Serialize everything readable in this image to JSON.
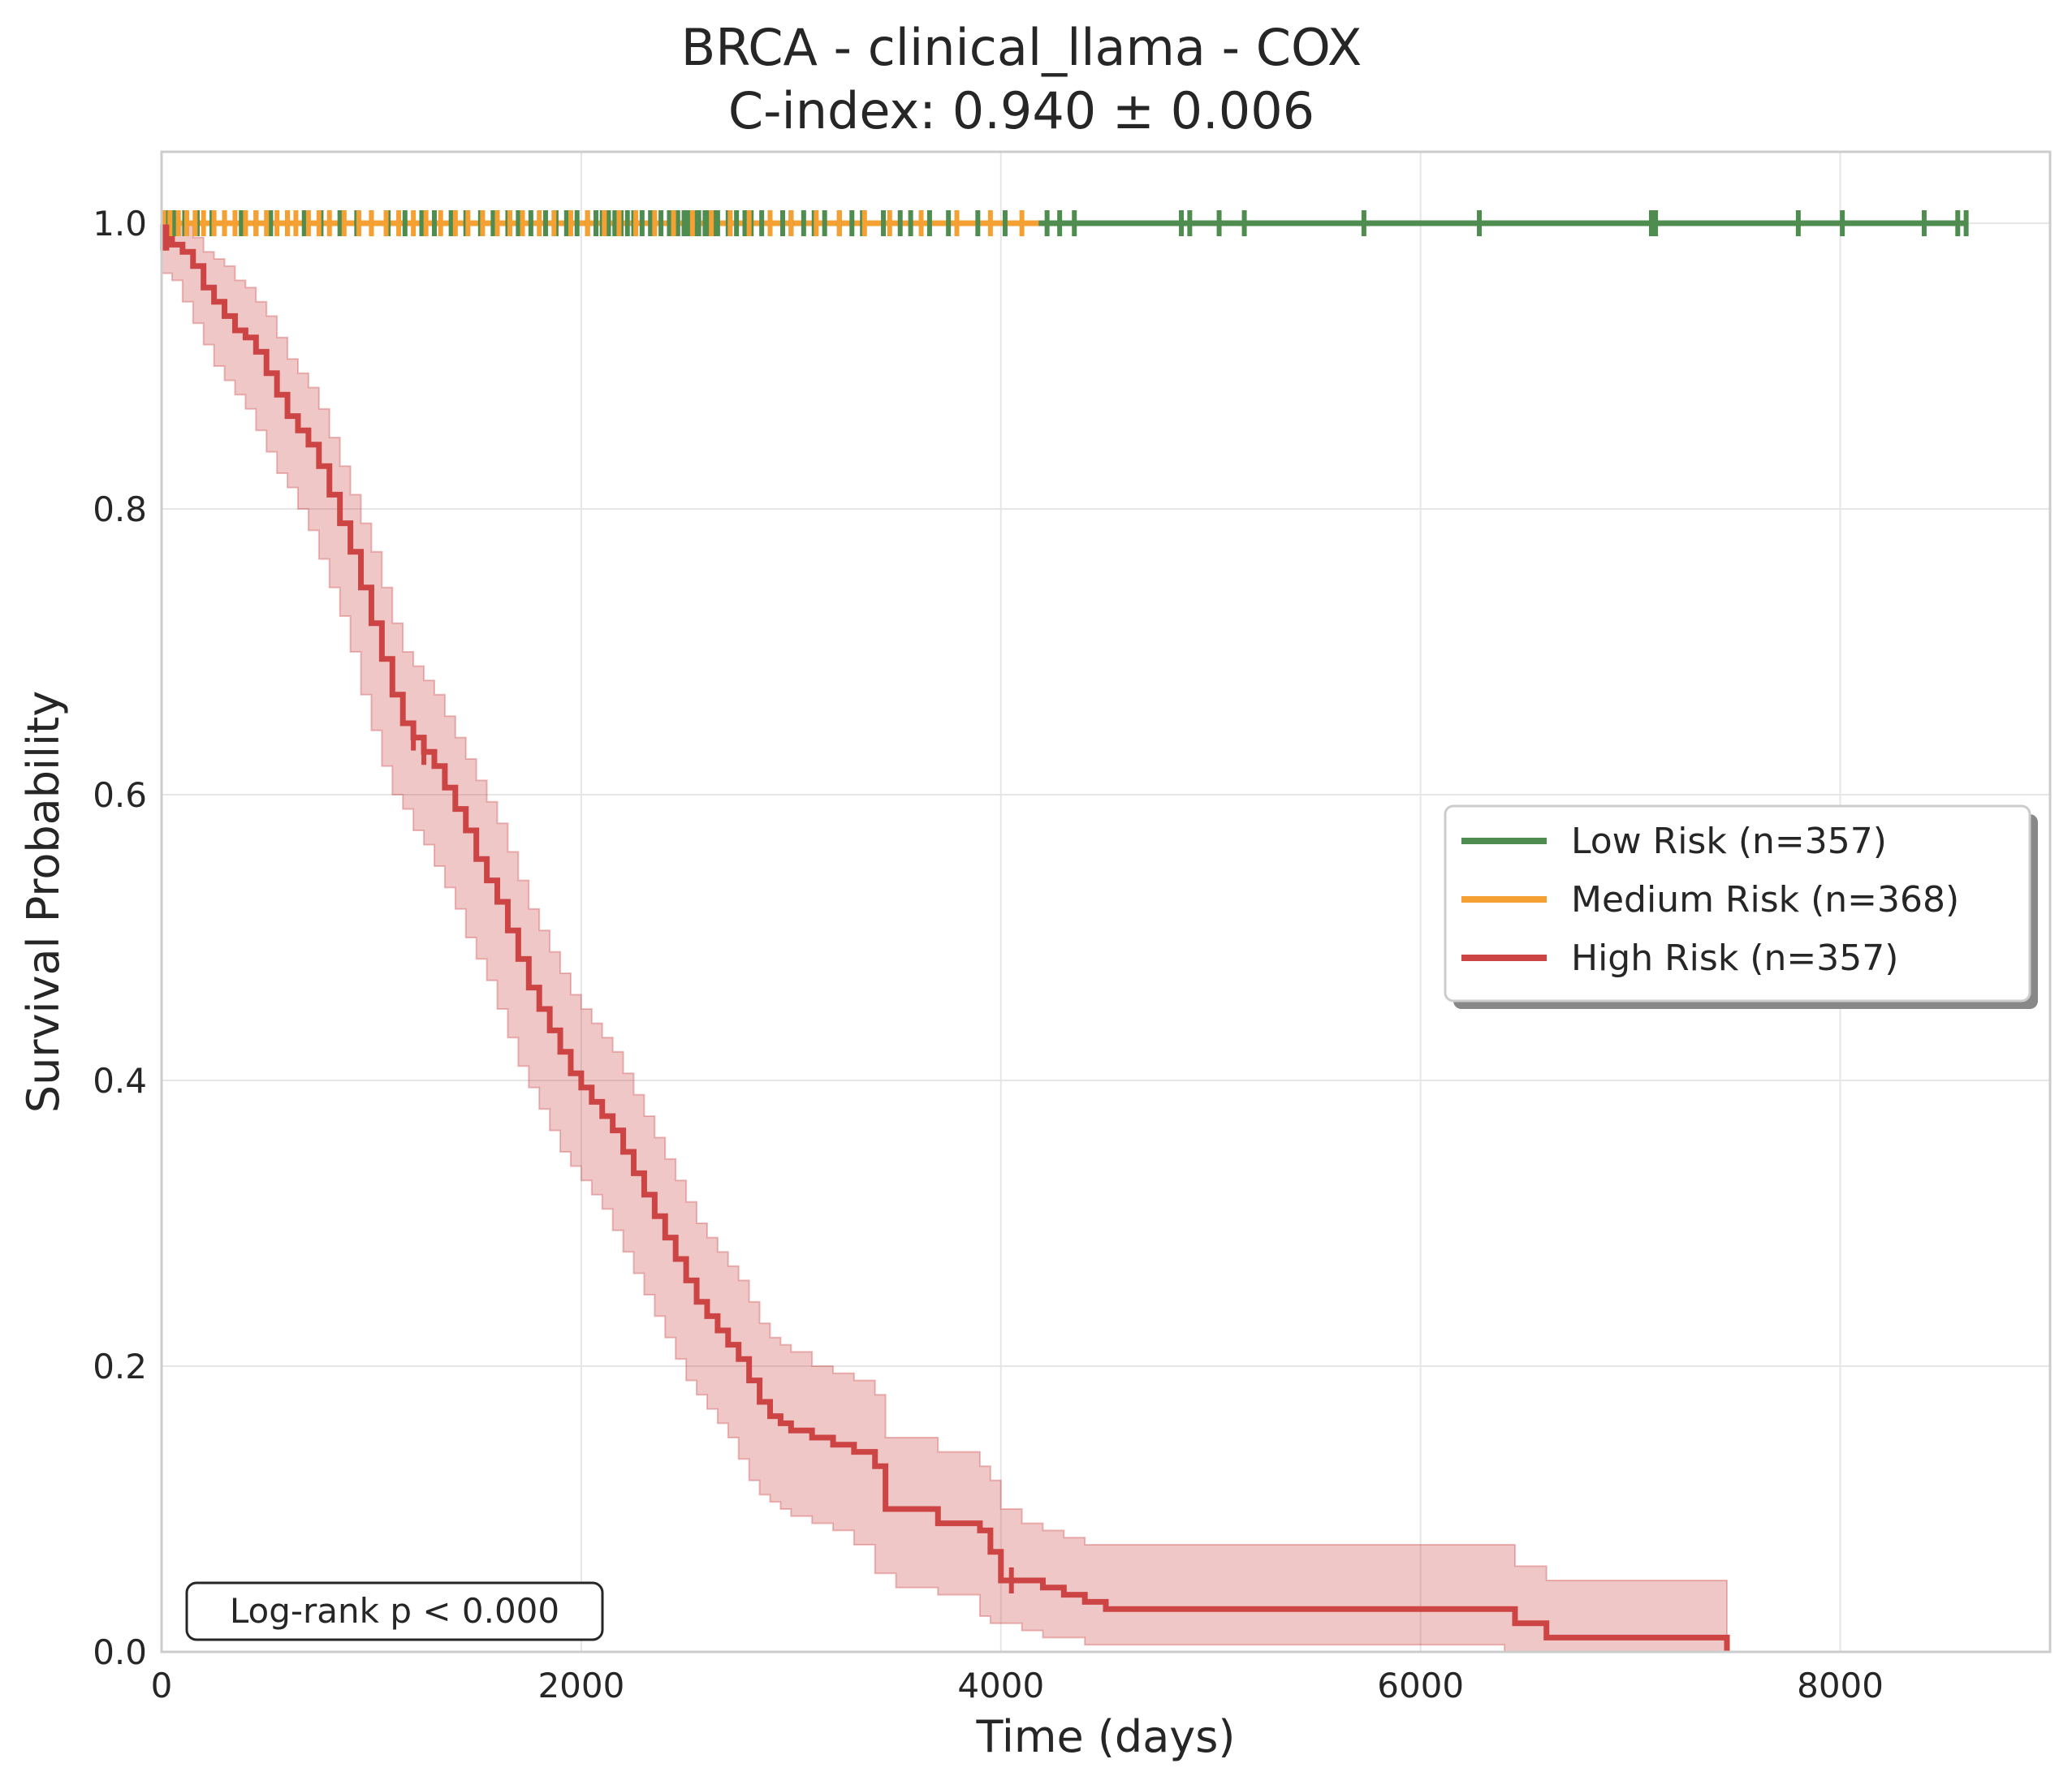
{
  "chart_data": {
    "type": "line",
    "title_line1": "BRCA - clinical_llama - COX",
    "title_line2": "C-index: 0.940 ± 0.006",
    "xlabel": "Time (days)",
    "ylabel": "Survival Probability",
    "xlim": [
      0,
      9000
    ],
    "ylim": [
      0,
      1.05
    ],
    "xticks": [
      0,
      2000,
      4000,
      6000,
      8000
    ],
    "yticks": [
      0.0,
      0.2,
      0.4,
      0.6,
      0.8,
      1.0
    ],
    "xtick_labels": [
      "0",
      "2000",
      "4000",
      "6000",
      "8000"
    ],
    "ytick_labels": [
      "0.0",
      "0.2",
      "0.4",
      "0.6",
      "0.8",
      "1.0"
    ],
    "grid": true,
    "legend_position": "center-right",
    "annotation": "Log-rank p < 0.000",
    "series": [
      {
        "name": "Low Risk (n=357)",
        "color": "#4e8c50",
        "x": [
          0,
          8610
        ],
        "y": [
          1.0,
          1.0
        ],
        "censor_x": [
          20,
          60,
          110,
          170,
          240,
          300,
          380,
          450,
          520,
          600,
          680,
          760,
          850,
          930,
          1000,
          1080,
          1160,
          1240,
          1300,
          1380,
          1450,
          1520,
          1580,
          1650,
          1700,
          1760,
          1830,
          1880,
          1930,
          1980,
          2030,
          2070,
          2100,
          2130,
          2160,
          2190,
          2220,
          2250,
          2290,
          2330,
          2380,
          2420,
          2460,
          2490,
          2510,
          2540,
          2560,
          2590,
          2610,
          2630,
          2650,
          2700,
          2740,
          2780,
          2810,
          2860,
          2900,
          2960,
          3000,
          3060,
          3110,
          3160,
          3230,
          3290,
          3340,
          3440,
          3520,
          3570,
          3660,
          3750,
          3890,
          4020,
          4220,
          4280,
          4350,
          4860,
          4900,
          5040,
          5160,
          5730,
          6280,
          7100,
          7120,
          7800,
          8010,
          8400,
          8560,
          8600
        ]
      },
      {
        "name": "Medium Risk (n=368)",
        "color": "#f5a033",
        "x": [
          0,
          4180
        ],
        "y": [
          1.0,
          1.0
        ],
        "censor_x": [
          10,
          40,
          80,
          120,
          160,
          200,
          250,
          300,
          350,
          400,
          450,
          500,
          550,
          600,
          640,
          700,
          750,
          800,
          870,
          940,
          1000,
          1070,
          1130,
          1200,
          1260,
          1330,
          1400,
          1460,
          1530,
          1600,
          1660,
          1720,
          1800,
          1870,
          1950,
          2030,
          2110,
          2180,
          2260,
          2350,
          2440,
          2530,
          2620,
          2710,
          2800,
          2900,
          3000,
          3120,
          3230,
          3350,
          3470,
          3620,
          3790,
          3950,
          4100
        ]
      },
      {
        "name": "High Risk (n=357)",
        "color": "#cc4444",
        "x": [
          0,
          50,
          100,
          150,
          200,
          250,
          300,
          350,
          400,
          450,
          500,
          550,
          600,
          650,
          700,
          750,
          800,
          850,
          900,
          950,
          1000,
          1050,
          1100,
          1150,
          1200,
          1250,
          1300,
          1350,
          1400,
          1450,
          1500,
          1550,
          1600,
          1650,
          1700,
          1750,
          1800,
          1850,
          1900,
          1950,
          2000,
          2050,
          2100,
          2150,
          2200,
          2250,
          2300,
          2350,
          2400,
          2450,
          2500,
          2550,
          2600,
          2650,
          2700,
          2750,
          2800,
          2850,
          2900,
          2950,
          3000,
          3100,
          3200,
          3300,
          3400,
          3450,
          3500,
          3700,
          3900,
          3950,
          4000,
          4100,
          4200,
          4300,
          4400,
          4500,
          6400,
          6450,
          6600,
          7450,
          7460
        ],
        "y": [
          0.99,
          0.985,
          0.98,
          0.97,
          0.955,
          0.945,
          0.935,
          0.925,
          0.92,
          0.91,
          0.895,
          0.88,
          0.865,
          0.855,
          0.845,
          0.83,
          0.81,
          0.79,
          0.77,
          0.745,
          0.72,
          0.695,
          0.67,
          0.65,
          0.64,
          0.63,
          0.62,
          0.605,
          0.59,
          0.575,
          0.555,
          0.54,
          0.525,
          0.505,
          0.485,
          0.465,
          0.45,
          0.435,
          0.42,
          0.405,
          0.395,
          0.385,
          0.375,
          0.365,
          0.35,
          0.335,
          0.32,
          0.305,
          0.29,
          0.275,
          0.26,
          0.245,
          0.235,
          0.225,
          0.215,
          0.205,
          0.19,
          0.175,
          0.165,
          0.16,
          0.155,
          0.15,
          0.145,
          0.14,
          0.13,
          0.1,
          0.1,
          0.09,
          0.085,
          0.07,
          0.05,
          0.05,
          0.045,
          0.04,
          0.035,
          0.03,
          0.03,
          0.02,
          0.01,
          0.01,
          0.0
        ],
        "ci_upper": [
          1.0,
          1.0,
          1.0,
          0.99,
          0.98,
          0.975,
          0.97,
          0.96,
          0.955,
          0.945,
          0.935,
          0.92,
          0.905,
          0.895,
          0.885,
          0.87,
          0.85,
          0.83,
          0.81,
          0.79,
          0.77,
          0.745,
          0.72,
          0.7,
          0.69,
          0.68,
          0.67,
          0.655,
          0.64,
          0.625,
          0.61,
          0.595,
          0.58,
          0.56,
          0.54,
          0.52,
          0.505,
          0.49,
          0.475,
          0.46,
          0.45,
          0.44,
          0.43,
          0.42,
          0.405,
          0.39,
          0.375,
          0.36,
          0.345,
          0.33,
          0.315,
          0.3,
          0.29,
          0.28,
          0.27,
          0.26,
          0.245,
          0.23,
          0.22,
          0.215,
          0.21,
          0.2,
          0.195,
          0.19,
          0.18,
          0.15,
          0.15,
          0.14,
          0.13,
          0.12,
          0.1,
          0.09,
          0.085,
          0.08,
          0.075,
          0.075,
          0.075,
          0.06,
          0.05,
          0.05,
          0.05
        ],
        "ci_lower": [
          0.97,
          0.965,
          0.96,
          0.945,
          0.93,
          0.915,
          0.9,
          0.89,
          0.88,
          0.87,
          0.855,
          0.84,
          0.825,
          0.815,
          0.8,
          0.785,
          0.765,
          0.745,
          0.725,
          0.7,
          0.67,
          0.645,
          0.62,
          0.6,
          0.59,
          0.575,
          0.565,
          0.55,
          0.535,
          0.52,
          0.5,
          0.485,
          0.47,
          0.45,
          0.43,
          0.41,
          0.395,
          0.38,
          0.365,
          0.35,
          0.34,
          0.33,
          0.32,
          0.31,
          0.295,
          0.28,
          0.265,
          0.25,
          0.235,
          0.22,
          0.205,
          0.19,
          0.18,
          0.17,
          0.16,
          0.15,
          0.135,
          0.12,
          0.11,
          0.105,
          0.1,
          0.095,
          0.09,
          0.085,
          0.075,
          0.055,
          0.055,
          0.045,
          0.04,
          0.025,
          0.02,
          0.02,
          0.015,
          0.01,
          0.01,
          0.005,
          0.005,
          0.0,
          0.0,
          0.0,
          0.0
        ],
        "censor_x": [
          5,
          15,
          25,
          1200,
          1250,
          4050
        ]
      }
    ]
  }
}
